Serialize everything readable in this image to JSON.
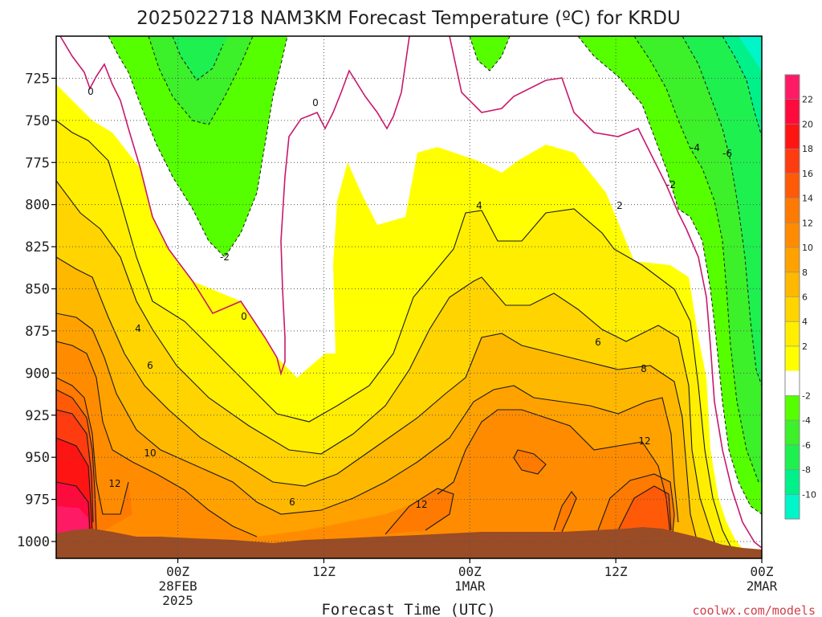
{
  "title": "2025022718 NAM3KM Forecast Temperature (ºC) for KRDU",
  "xlabel": "Forecast Time (UTC)",
  "credit": "coolwx.com/models",
  "chart_data": {
    "type": "contour",
    "title": "2025022718 NAM3KM Forecast Temperature (ºC) for KRDU",
    "xlabel": "Forecast Time (UTC)",
    "ylabel": "",
    "y_axis": {
      "reversed": true,
      "range": [
        700,
        1010
      ],
      "ticks": [
        725,
        750,
        775,
        800,
        825,
        850,
        875,
        900,
        925,
        950,
        975,
        1000
      ]
    },
    "x_axis": {
      "range": [
        -4,
        54
      ],
      "ticks": [
        {
          "x": 6,
          "labels": [
            "00Z",
            "28FEB",
            "2025"
          ]
        },
        {
          "x": 18,
          "labels": [
            "12Z"
          ]
        },
        {
          "x": 30,
          "labels": [
            "00Z",
            "1MAR"
          ]
        },
        {
          "x": 42,
          "labels": [
            "12Z"
          ]
        },
        {
          "x": 54,
          "labels": [
            "00Z",
            "2MAR"
          ]
        }
      ]
    },
    "grid": true,
    "colorbar": {
      "position": "right",
      "labels": [
        22,
        20,
        18,
        16,
        14,
        12,
        10,
        8,
        6,
        4,
        2,
        -2,
        -4,
        -6,
        -8,
        -10
      ],
      "bands": [
        {
          "from": 22,
          "to": 24,
          "color": "#ff1a66"
        },
        {
          "from": 20,
          "to": 22,
          "color": "#ff0a3c"
        },
        {
          "from": 18,
          "to": 20,
          "color": "#ff1414"
        },
        {
          "from": 16,
          "to": 18,
          "color": "#ff3c10"
        },
        {
          "from": 14,
          "to": 16,
          "color": "#ff5a08"
        },
        {
          "from": 12,
          "to": 14,
          "color": "#ff7a00"
        },
        {
          "from": 10,
          "to": 12,
          "color": "#ff8c00"
        },
        {
          "from": 8,
          "to": 10,
          "color": "#ffa200"
        },
        {
          "from": 6,
          "to": 8,
          "color": "#ffb800"
        },
        {
          "from": 4,
          "to": 6,
          "color": "#ffd400"
        },
        {
          "from": 2,
          "to": 4,
          "color": "#ffee00"
        },
        {
          "from": 0,
          "to": 2,
          "color": "#ffff00"
        },
        {
          "from": -2,
          "to": 0,
          "color": "#ffffff"
        },
        {
          "from": -4,
          "to": -2,
          "color": "#55ff00"
        },
        {
          "from": -6,
          "to": -4,
          "color": "#3cf02a"
        },
        {
          "from": -8,
          "to": -6,
          "color": "#1ef050"
        },
        {
          "from": -10,
          "to": -8,
          "color": "#00f08a"
        },
        {
          "from": -12,
          "to": -10,
          "color": "#00f5c8"
        }
      ]
    },
    "contour_labels": [
      {
        "text": "0",
        "x": 41
      },
      {
        "text": "0",
        "x": 119
      },
      {
        "text": "0",
        "x": 88
      },
      {
        "text": "-2",
        "x": 43
      },
      {
        "text": "-2",
        "x": 82
      },
      {
        "text": "-4",
        "x": 90
      },
      {
        "text": "-6",
        "x": 94
      },
      {
        "text": "2",
        "x": 80
      },
      {
        "text": "4",
        "x": 24
      },
      {
        "text": "4",
        "x": 62
      },
      {
        "text": "6",
        "x": 25
      },
      {
        "text": "6",
        "x": 37
      },
      {
        "text": "6",
        "x": 77
      },
      {
        "text": "8",
        "x": 84
      },
      {
        "text": "10",
        "x": 23
      },
      {
        "text": "12",
        "x": 17
      },
      {
        "text": "12",
        "x": 54
      },
      {
        "text": "12",
        "x": 83
      }
    ]
  },
  "colors": {
    "terrain": "#994c26",
    "freezing_line": "#c8186e",
    "contour": "#1a1a1a"
  }
}
